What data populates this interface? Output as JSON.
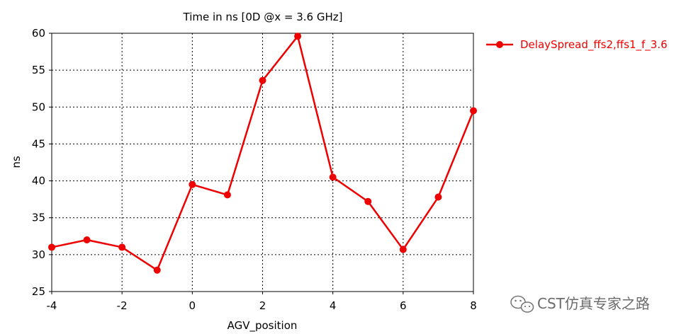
{
  "chart_data": {
    "type": "line",
    "title": "Time in ns [0D @x = 3.6 GHz]",
    "xlabel": "AGV_position",
    "ylabel": "ns",
    "xlim": [
      -4,
      8
    ],
    "ylim": [
      25,
      60
    ],
    "xticks": [
      -4,
      -2,
      0,
      2,
      4,
      6,
      8
    ],
    "yticks": [
      25,
      30,
      35,
      40,
      45,
      50,
      55,
      60
    ],
    "grid": true,
    "legend_position": "right",
    "series": [
      {
        "name": "DelaySpread_ffs2,ffs1_f_3.6",
        "color": "#ee0000",
        "marker": "circle",
        "x": [
          -4,
          -3,
          -2,
          -1,
          0,
          1,
          2,
          3,
          4,
          5,
          6,
          7,
          8
        ],
        "y": [
          31.0,
          32.0,
          31.0,
          27.9,
          39.5,
          38.1,
          53.6,
          59.6,
          40.5,
          37.2,
          30.7,
          37.8,
          49.5
        ]
      }
    ]
  },
  "watermark": {
    "text": "CST仿真专家之路",
    "icon": "wechat-icon"
  }
}
